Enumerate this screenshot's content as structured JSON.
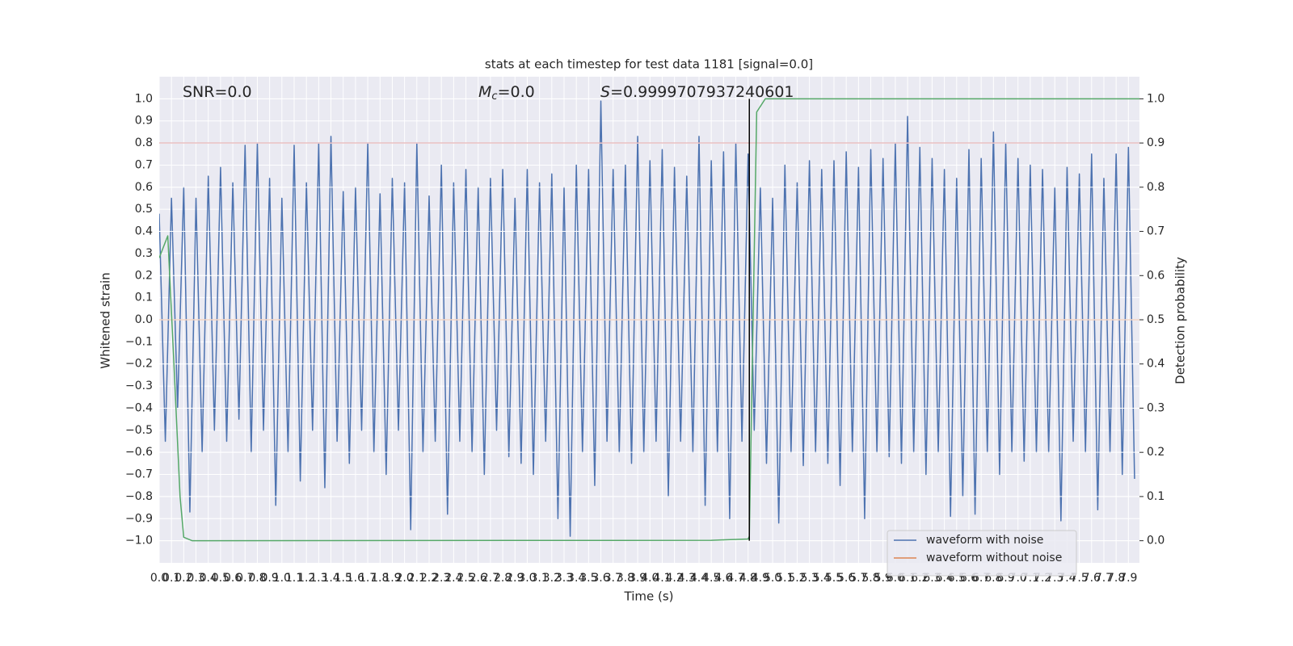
{
  "chart_data": {
    "type": "line",
    "title": "stats at each timestep for test data 1181 [signal=0.0]",
    "xlabel": "Time (s)",
    "ylabel": "Whitened strain",
    "y2label": "Detection probability",
    "xlim": [
      0,
      7.99
    ],
    "ylim": [
      -1.1,
      1.1
    ],
    "y2lim": [
      -0.05,
      1.05
    ],
    "grid": true,
    "legend": "lower right",
    "xticks": [
      {
        "value": 0,
        "label": "0.0"
      },
      0.1,
      0.2,
      0.3,
      0.4,
      0.5,
      0.6,
      0.7,
      0.8,
      0.9,
      {
        "value": 1,
        "label": "1.0"
      },
      1.1,
      1.2,
      1.3,
      1.4,
      1.5,
      1.6,
      1.7,
      1.8,
      1.9,
      {
        "value": 2,
        "label": "2.0"
      },
      2.1,
      2.2,
      2.3,
      2.4,
      2.5,
      2.6,
      2.7,
      2.8,
      2.9,
      {
        "value": 3,
        "label": "3.0"
      },
      3.1,
      3.2,
      3.3,
      3.4,
      3.5,
      3.6,
      3.7,
      3.8,
      3.9,
      {
        "value": 4,
        "label": "4.0"
      },
      4.1,
      4.2,
      4.3,
      4.4,
      4.5,
      4.6,
      4.7,
      4.8,
      4.9,
      {
        "value": 5,
        "label": "5.0"
      },
      5.1,
      5.2,
      5.3,
      5.4,
      5.5,
      5.6,
      5.7,
      5.8,
      5.9,
      {
        "value": 6,
        "label": "6.0"
      },
      6.1,
      6.2,
      6.3,
      6.4,
      6.5,
      6.6,
      6.7,
      6.8,
      6.9,
      {
        "value": 7,
        "label": "7.0"
      },
      7.1,
      7.2,
      7.3,
      7.4,
      7.5,
      7.6,
      7.7,
      7.8,
      7.9
    ],
    "yticks": [
      {
        "value": -1,
        "label": "−1.0"
      },
      {
        "value": -0.9,
        "label": "−0.9"
      },
      {
        "value": -0.8,
        "label": "−0.8"
      },
      {
        "value": -0.7,
        "label": "−0.7"
      },
      {
        "value": -0.6,
        "label": "−0.6"
      },
      {
        "value": -0.5,
        "label": "−0.5"
      },
      {
        "value": -0.4,
        "label": "−0.4"
      },
      {
        "value": -0.3,
        "label": "−0.3"
      },
      {
        "value": -0.2,
        "label": "−0.2"
      },
      {
        "value": -0.1,
        "label": "−0.1"
      },
      {
        "value": 0,
        "label": "0.0"
      },
      0.1,
      0.2,
      0.3,
      0.4,
      0.5,
      0.6,
      0.7,
      0.8,
      0.9,
      {
        "value": 1,
        "label": "1.0"
      }
    ],
    "y2ticks": [
      {
        "value": 0,
        "label": "0.0"
      },
      0.1,
      0.2,
      0.3,
      0.4,
      0.5,
      0.6,
      0.7,
      0.8,
      0.9,
      {
        "value": 1,
        "label": "1.0"
      }
    ],
    "series": [
      {
        "name": "waveform with noise",
        "color": "#4c72b0",
        "x": [
          0,
          0.05,
          0.1,
          0.15,
          0.2,
          0.25,
          0.3,
          0.35,
          0.4,
          0.45,
          0.5,
          0.55,
          0.6,
          0.65,
          0.7,
          0.75,
          0.8,
          0.85,
          0.9,
          0.95,
          1,
          1.05,
          1.1,
          1.15,
          1.2,
          1.25,
          1.3,
          1.35,
          1.4,
          1.45,
          1.5,
          1.55,
          1.6,
          1.65,
          1.7,
          1.75,
          1.8,
          1.85,
          1.9,
          1.95,
          2,
          2.05,
          2.1,
          2.15,
          2.2,
          2.25,
          2.3,
          2.35,
          2.4,
          2.45,
          2.5,
          2.55,
          2.6,
          2.65,
          2.7,
          2.75,
          2.8,
          2.85,
          2.9,
          2.95,
          3,
          3.05,
          3.1,
          3.15,
          3.2,
          3.25,
          3.3,
          3.35,
          3.4,
          3.45,
          3.5,
          3.55,
          3.6,
          3.65,
          3.7,
          3.75,
          3.8,
          3.85,
          3.9,
          3.95,
          4,
          4.05,
          4.1,
          4.15,
          4.2,
          4.25,
          4.3,
          4.35,
          4.4,
          4.45,
          4.5,
          4.55,
          4.6,
          4.65,
          4.7,
          4.75,
          4.8,
          4.85,
          4.9,
          4.95,
          5,
          5.05,
          5.1,
          5.15,
          5.2,
          5.25,
          5.3,
          5.35,
          5.4,
          5.45,
          5.5,
          5.55,
          5.6,
          5.65,
          5.7,
          5.75,
          5.8,
          5.85,
          5.9,
          5.95,
          6,
          6.05,
          6.1,
          6.15,
          6.2,
          6.25,
          6.3,
          6.35,
          6.4,
          6.45,
          6.5,
          6.55,
          6.6,
          6.65,
          6.7,
          6.75,
          6.8,
          6.85,
          6.9,
          6.95,
          7,
          7.05,
          7.1,
          7.15,
          7.2,
          7.25,
          7.3,
          7.35,
          7.4,
          7.45,
          7.5,
          7.55,
          7.6,
          7.65,
          7.7,
          7.75,
          7.8,
          7.85,
          7.9,
          7.95
        ],
        "values": [
          0.48,
          -0.55,
          0.55,
          -0.4,
          0.6,
          -0.87,
          0.55,
          -0.6,
          0.65,
          -0.5,
          0.69,
          -0.55,
          0.62,
          -0.45,
          0.79,
          -0.6,
          0.8,
          -0.5,
          0.64,
          -0.84,
          0.55,
          -0.6,
          0.79,
          -0.73,
          0.62,
          -0.5,
          0.8,
          -0.76,
          0.83,
          -0.55,
          0.58,
          -0.65,
          0.6,
          -0.5,
          0.8,
          -0.6,
          0.57,
          -0.7,
          0.64,
          -0.5,
          0.62,
          -0.95,
          0.8,
          -0.6,
          0.56,
          -0.55,
          0.7,
          -0.88,
          0.62,
          -0.55,
          0.68,
          -0.6,
          0.6,
          -0.7,
          0.64,
          -0.5,
          0.68,
          -0.62,
          0.55,
          -0.65,
          0.68,
          -0.7,
          0.62,
          -0.55,
          0.66,
          -0.9,
          0.6,
          -0.98,
          0.7,
          -0.6,
          0.68,
          -0.75,
          0.99,
          -0.55,
          0.68,
          -0.6,
          0.7,
          -0.65,
          0.83,
          -0.6,
          0.72,
          -0.55,
          0.77,
          -0.8,
          0.69,
          -0.55,
          0.65,
          -0.6,
          0.83,
          -0.84,
          0.72,
          -0.6,
          0.76,
          -0.9,
          0.8,
          -0.55,
          0.75,
          -0.5,
          0.6,
          -0.65,
          0.55,
          -0.92,
          0.7,
          -0.6,
          0.62,
          -0.66,
          0.72,
          -0.6,
          0.68,
          -0.65,
          0.72,
          -0.75,
          0.76,
          -0.6,
          0.69,
          -0.9,
          0.77,
          -0.6,
          0.73,
          -0.62,
          0.8,
          -0.65,
          0.92,
          -0.6,
          0.78,
          -0.7,
          0.73,
          -0.6,
          0.68,
          -0.89,
          0.64,
          -0.8,
          0.77,
          -0.88,
          0.73,
          -0.6,
          0.85,
          -0.7,
          0.8,
          -0.6,
          0.73,
          -0.64,
          0.7,
          -0.6,
          0.68,
          -0.6,
          0.6,
          -0.91,
          0.69,
          -0.55,
          0.66,
          -0.6,
          0.75,
          -0.86,
          0.64,
          -0.6,
          0.75,
          -0.7,
          0.78,
          -0.72
        ]
      },
      {
        "name": "waveform without noise",
        "color": "#dd8452",
        "x": [
          0,
          7.99
        ],
        "values": [
          0,
          0
        ]
      },
      {
        "color": "#55a868",
        "axis": "y2",
        "x": [
          0,
          0.07,
          0.12,
          0.17,
          0.2,
          0.27,
          4.5,
          4.8,
          4.81,
          4.84,
          4.87,
          4.94,
          7.99
        ],
        "values": [
          0.64,
          0.69,
          0.4,
          0.1,
          0.008,
          0.0,
          0.001,
          0.004,
          0.01,
          0.49,
          0.97,
          1.0,
          1.0
        ]
      }
    ],
    "hlines": [
      {
        "y": 0.8,
        "color": "#c44e52"
      }
    ],
    "vlines": [
      {
        "x": 4.81,
        "color": "#000000"
      }
    ],
    "annotations": [
      {
        "text": "SNR=0.0"
      },
      {
        "symbol": "M",
        "subscript": "c",
        "text": "=0.0"
      },
      {
        "symbol": "S",
        "text": "=0.9999707937240601"
      }
    ]
  }
}
